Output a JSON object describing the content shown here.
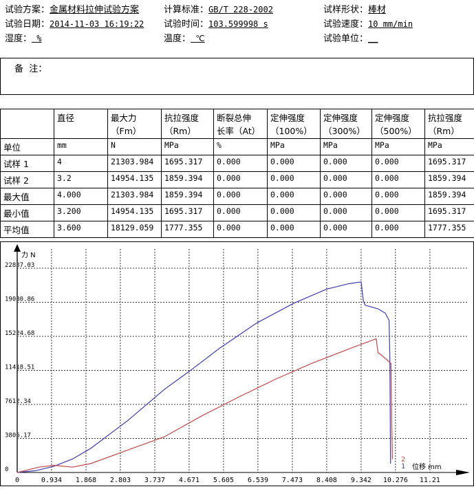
{
  "header": {
    "scheme_label": "试验方案：",
    "scheme": "金属材料拉伸试验方案",
    "standard_label": "计算标准：",
    "standard": "GB/T 228-2002",
    "shape_label": "试样形状：",
    "shape": "棒材",
    "date_label": "试验日期：",
    "date": "2014-11-03 16:19:22",
    "time_label": "试验时间：",
    "time": "103.599998 s",
    "speed_label": "试验速度：",
    "speed": "10 mm/min",
    "humidity_label": "湿度：",
    "humidity": " %",
    "temperature_label": "温度：",
    "temperature": " ℃",
    "unit_label": "试验单位：",
    "unit": "__"
  },
  "remarks_label": "备  注：",
  "table": {
    "headers": [
      [
        "",
        ""
      ],
      [
        "直径",
        ""
      ],
      [
        "最大力",
        "（Fm）"
      ],
      [
        "抗拉强度",
        "（Rm）"
      ],
      [
        "断裂总伸",
        "长率（At）"
      ],
      [
        "定伸强度",
        "（100%）"
      ],
      [
        "定伸强度",
        "（300%）"
      ],
      [
        "定伸强度",
        "（500%）"
      ],
      [
        "抗拉强度",
        "（Rm）"
      ]
    ],
    "rows": [
      [
        "单位",
        "mm",
        "N",
        "MPa",
        "%",
        "MPa",
        "MPa",
        "MPa",
        "MPa"
      ],
      [
        "试样 1",
        "4",
        "21303.984",
        "1695.317",
        "0.000",
        "0.000",
        "0.000",
        "0.000",
        "1695.317"
      ],
      [
        "试样 2",
        "3.2",
        "14954.135",
        "1859.394",
        "0.000",
        "0.000",
        "0.000",
        "0.000",
        "1859.394"
      ],
      [
        "最大值",
        "4.000",
        "21303.984",
        "1859.394",
        "0.000",
        "0.000",
        "0.000",
        "0.000",
        "1859.394"
      ],
      [
        "最小值",
        "3.200",
        "14954.135",
        "1695.317",
        "0.000",
        "0.000",
        "0.000",
        "0.000",
        "1695.317"
      ],
      [
        "平均值",
        "3.600",
        "18129.059",
        "1777.355",
        "0.000",
        "0.000",
        "0.000",
        "0.000",
        "1777.355"
      ]
    ]
  },
  "chart_data": {
    "type": "line",
    "ylabel": "力 N",
    "xlabel": "位移 mm",
    "yticks": [
      "0",
      "3806.17",
      "7612.34",
      "11418.51",
      "15224.68",
      "19030.86",
      "22837.03"
    ],
    "xticks": [
      "0",
      "0.934",
      "1.868",
      "2.803",
      "3.737",
      "4.671",
      "5.605",
      "6.539",
      "7.473",
      "8.408",
      "9.342",
      "10.276",
      "11.21"
    ],
    "xlim": [
      0,
      12.144
    ],
    "ylim": [
      0,
      22837.03
    ],
    "grid": true,
    "series": [
      {
        "name": "1",
        "color": "#3b3bb0",
        "x": [
          0,
          0.5,
          1.0,
          1.5,
          2.0,
          3.0,
          4.0,
          4.671,
          5.5,
          6.5,
          7.5,
          8.4,
          9.0,
          9.342,
          9.4,
          9.45,
          9.8,
          10.0,
          10.1,
          10.12,
          10.14
        ],
        "y": [
          0,
          200,
          700,
          1500,
          2700,
          5800,
          9300,
          11300,
          13900,
          16700,
          18900,
          20500,
          21100,
          21304,
          19200,
          18700,
          18300,
          17800,
          17000,
          13000,
          1000
        ]
      },
      {
        "name": "2",
        "color": "#c04848",
        "x": [
          0,
          0.6,
          1.0,
          1.5,
          2.0,
          3.0,
          4.0,
          5.0,
          6.0,
          7.0,
          8.0,
          9.0,
          9.75,
          9.8,
          9.9,
          10.15,
          10.17,
          10.19
        ],
        "y": [
          0,
          600,
          800,
          600,
          1000,
          2500,
          4000,
          6300,
          8400,
          10400,
          12200,
          13800,
          14954,
          13400,
          13100,
          12200,
          6000,
          1500
        ]
      }
    ]
  }
}
